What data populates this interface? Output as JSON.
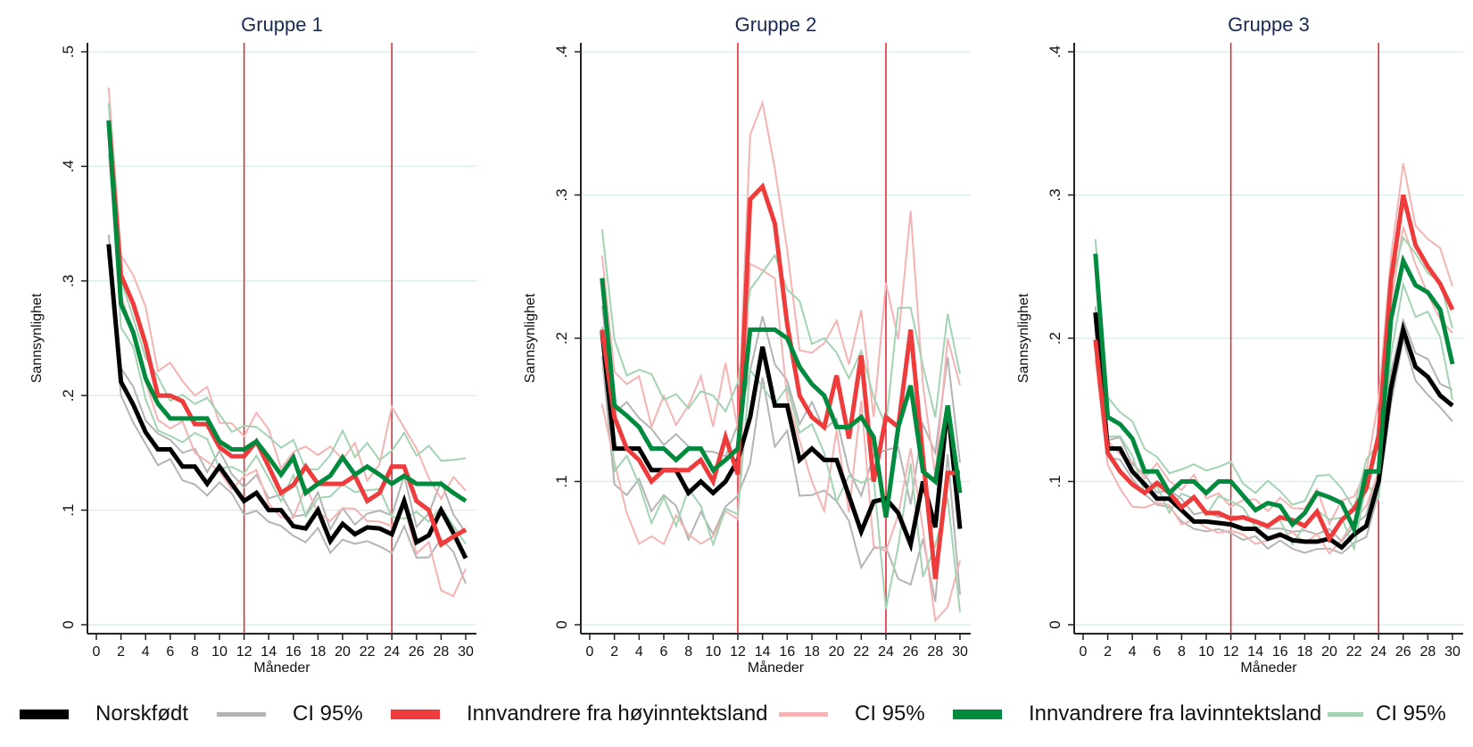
{
  "chart_data": [
    {
      "type": "line",
      "title": "Gruppe 1",
      "xlabel": "Måneder",
      "ylabel": "Sannsynlighet",
      "xlim": [
        0,
        30
      ],
      "ylim": [
        0,
        0.5
      ],
      "xticks": [
        0,
        2,
        4,
        6,
        8,
        10,
        12,
        14,
        16,
        18,
        20,
        22,
        24,
        26,
        28,
        30
      ],
      "yticks": [
        0,
        0.1,
        0.2,
        0.3,
        0.4,
        0.5
      ],
      "ytick_labels": [
        "0",
        ".1",
        ".2",
        ".3",
        ".4",
        ".5"
      ],
      "vlines": [
        12,
        24
      ],
      "x": [
        1,
        2,
        3,
        4,
        5,
        6,
        7,
        8,
        9,
        10,
        11,
        12,
        13,
        14,
        15,
        16,
        17,
        18,
        19,
        20,
        21,
        22,
        23,
        24,
        25,
        26,
        27,
        28,
        29,
        30
      ],
      "ci_halfwidth": {
        "Norskfødt": 0.012,
        "Innvandrere fra høyinntektsland": 0.025,
        "Innvandrere fra lavinntektsland": 0.018
      },
      "series": [
        {
          "name": "Norskfødt",
          "values": [
            0.332,
            0.212,
            0.192,
            0.168,
            0.153,
            0.153,
            0.138,
            0.138,
            0.123,
            0.138,
            0.123,
            0.108,
            0.115,
            0.1,
            0.1,
            0.086,
            0.084,
            0.1,
            0.073,
            0.088,
            0.079,
            0.085,
            0.084,
            0.079,
            0.108,
            0.072,
            0.078,
            0.1,
            0.08,
            0.058
          ]
        },
        {
          "name": "Innvandrere fra høyinntektsland",
          "values": [
            0.44,
            0.305,
            0.28,
            0.245,
            0.2,
            0.2,
            0.195,
            0.175,
            0.175,
            0.155,
            0.147,
            0.147,
            0.16,
            0.138,
            0.115,
            0.122,
            0.138,
            0.123,
            0.123,
            0.123,
            0.13,
            0.108,
            0.115,
            0.138,
            0.138,
            0.108,
            0.1,
            0.07,
            0.077,
            0.083
          ]
        },
        {
          "name": "Innvandrere fra lavinntektsland",
          "values": [
            0.44,
            0.28,
            0.255,
            0.215,
            0.193,
            0.18,
            0.18,
            0.18,
            0.18,
            0.16,
            0.153,
            0.153,
            0.16,
            0.146,
            0.131,
            0.146,
            0.115,
            0.123,
            0.13,
            0.146,
            0.131,
            0.138,
            0.131,
            0.123,
            0.13,
            0.123,
            0.123,
            0.123,
            0.115,
            0.108
          ]
        }
      ]
    },
    {
      "type": "line",
      "title": "Gruppe 2",
      "xlabel": "Måneder",
      "ylabel": "Sannsynlighet",
      "xlim": [
        0,
        30
      ],
      "ylim": [
        0,
        0.4
      ],
      "xticks": [
        0,
        2,
        4,
        6,
        8,
        10,
        12,
        14,
        16,
        18,
        20,
        22,
        24,
        26,
        28,
        30
      ],
      "yticks": [
        0,
        0.1,
        0.2,
        0.3,
        0.4
      ],
      "ytick_labels": [
        "0",
        ".1",
        ".2",
        ".3",
        ".4"
      ],
      "vlines": [
        12,
        24
      ],
      "x": [
        1,
        2,
        3,
        4,
        5,
        6,
        7,
        8,
        9,
        10,
        11,
        12,
        13,
        14,
        15,
        16,
        17,
        18,
        19,
        20,
        21,
        22,
        23,
        24,
        25,
        26,
        27,
        28,
        29,
        30
      ],
      "ci_halfwidth": {
        "Norskfødt": 0.025,
        "Innvandrere fra høyinntektsland": 0.045,
        "Innvandrere fra lavinntektsland": 0.04
      },
      "series": [
        {
          "name": "Norskfødt",
          "values": [
            0.205,
            0.123,
            0.123,
            0.123,
            0.108,
            0.108,
            0.108,
            0.092,
            0.1,
            0.092,
            0.1,
            0.115,
            0.145,
            0.194,
            0.153,
            0.153,
            0.115,
            0.123,
            0.115,
            0.115,
            0.09,
            0.065,
            0.086,
            0.088,
            0.078,
            0.056,
            0.1,
            0.068,
            0.153,
            0.067
          ]
        },
        {
          "name": "Innvandrere fra høyinntektsland",
          "values": [
            0.206,
            0.145,
            0.123,
            0.115,
            0.1,
            0.108,
            0.108,
            0.108,
            0.115,
            0.1,
            0.131,
            0.105,
            0.297,
            0.306,
            0.28,
            0.21,
            0.16,
            0.145,
            0.138,
            0.174,
            0.13,
            0.188,
            0.1,
            0.145,
            0.138,
            0.206,
            0.117,
            0.032,
            0.106,
            0.106
          ]
        },
        {
          "name": "Innvandrere fra lavinntektsland",
          "values": [
            0.242,
            0.153,
            0.146,
            0.138,
            0.123,
            0.123,
            0.115,
            0.123,
            0.123,
            0.108,
            0.115,
            0.123,
            0.206,
            0.206,
            0.206,
            0.2,
            0.18,
            0.168,
            0.16,
            0.138,
            0.138,
            0.145,
            0.131,
            0.075,
            0.138,
            0.167,
            0.107,
            0.1,
            0.153,
            0.092
          ]
        }
      ]
    },
    {
      "type": "line",
      "title": "Gruppe 3",
      "xlabel": "Måneder",
      "ylabel": "Sannsynlighet",
      "xlim": [
        0,
        30
      ],
      "ylim": [
        0,
        0.4
      ],
      "xticks": [
        0,
        2,
        4,
        6,
        8,
        10,
        12,
        14,
        16,
        18,
        20,
        22,
        24,
        26,
        28,
        30
      ],
      "yticks": [
        0,
        0.1,
        0.2,
        0.3,
        0.4
      ],
      "ytick_labels": [
        "0",
        ".1",
        ".2",
        ".3",
        ".4"
      ],
      "vlines": [
        12,
        24
      ],
      "x": [
        1,
        2,
        3,
        4,
        5,
        6,
        7,
        8,
        9,
        10,
        11,
        12,
        13,
        14,
        15,
        16,
        17,
        18,
        19,
        20,
        21,
        22,
        23,
        24,
        25,
        26,
        27,
        28,
        29,
        30
      ],
      "ci_halfwidth": {
        "Norskfødt": 0.006,
        "Innvandrere fra høyinntektsland": 0.012,
        "Innvandrere fra lavinntektsland": 0.012
      },
      "series": [
        {
          "name": "Norskfødt",
          "values": [
            0.218,
            0.123,
            0.123,
            0.107,
            0.098,
            0.088,
            0.088,
            0.08,
            0.072,
            0.072,
            0.071,
            0.07,
            0.067,
            0.067,
            0.06,
            0.063,
            0.059,
            0.058,
            0.058,
            0.06,
            0.054,
            0.063,
            0.069,
            0.1,
            0.165,
            0.206,
            0.18,
            0.173,
            0.16,
            0.153
          ]
        },
        {
          "name": "Innvandrere fra høyinntektsland",
          "values": [
            0.199,
            0.12,
            0.107,
            0.098,
            0.092,
            0.099,
            0.092,
            0.082,
            0.089,
            0.078,
            0.078,
            0.074,
            0.075,
            0.072,
            0.069,
            0.075,
            0.073,
            0.069,
            0.079,
            0.06,
            0.073,
            0.081,
            0.095,
            0.132,
            0.24,
            0.3,
            0.265,
            0.25,
            0.238,
            0.22
          ]
        },
        {
          "name": "Innvandrere fra lavinntektsland",
          "values": [
            0.259,
            0.145,
            0.14,
            0.13,
            0.107,
            0.107,
            0.092,
            0.1,
            0.1,
            0.092,
            0.1,
            0.1,
            0.09,
            0.08,
            0.085,
            0.083,
            0.07,
            0.078,
            0.092,
            0.089,
            0.085,
            0.067,
            0.107,
            0.107,
            0.213,
            0.254,
            0.237,
            0.232,
            0.22,
            0.182
          ]
        }
      ]
    }
  ],
  "legend": [
    {
      "label": "Norskfødt",
      "color": "#000000",
      "kind": "main"
    },
    {
      "label": "CI 95%",
      "color": "#b4b4b4",
      "kind": "ci"
    },
    {
      "label": "Innvandrere fra høyinntektsland",
      "color": "#ee3b3b",
      "kind": "main"
    },
    {
      "label": "CI 95%",
      "color": "#f5b3b3",
      "kind": "ci"
    },
    {
      "label": "Innvandrere fra lavinntektsland",
      "color": "#008a3e",
      "kind": "main"
    },
    {
      "label": "CI 95%",
      "color": "#a3d3b3",
      "kind": "ci"
    }
  ],
  "colors": {
    "main": [
      "#000000",
      "#ee3b3b",
      "#008a3e"
    ],
    "ci": [
      "#b4b4b4",
      "#f5b3b3",
      "#a3d3b3"
    ],
    "vline": "#e0202a",
    "grid": "#dbeeee",
    "title": "#1a2a52"
  }
}
